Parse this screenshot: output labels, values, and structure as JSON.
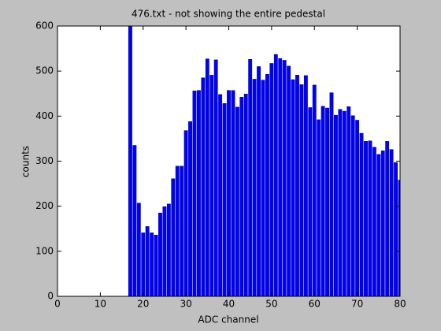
{
  "chart_data": {
    "type": "bar",
    "title": "476.txt - not showing the entire pedestal",
    "x_label": "ADC channel",
    "y_label": "counts",
    "x": [
      17,
      18,
      19,
      20,
      21,
      22,
      23,
      24,
      25,
      26,
      27,
      28,
      29,
      30,
      31,
      32,
      33,
      34,
      35,
      36,
      37,
      38,
      39,
      40,
      41,
      42,
      43,
      44,
      45,
      46,
      47,
      48,
      49,
      50,
      51,
      52,
      53,
      54,
      55,
      56,
      57,
      58,
      59,
      60,
      61,
      62,
      63,
      64,
      65,
      66,
      67,
      68,
      69,
      70,
      71,
      72,
      73,
      74,
      75,
      76,
      77,
      78,
      79,
      80
    ],
    "values": [
      600,
      335,
      207,
      141,
      155,
      141,
      136,
      185,
      199,
      205,
      261,
      289,
      289,
      368,
      388,
      456,
      457,
      485,
      527,
      491,
      525,
      448,
      428,
      457,
      457,
      420,
      442,
      449,
      526,
      482,
      510,
      480,
      493,
      517,
      537,
      528,
      524,
      511,
      481,
      491,
      470,
      490,
      419,
      469,
      392,
      422,
      418,
      452,
      402,
      415,
      411,
      421,
      401,
      391,
      362,
      344,
      345,
      331,
      315,
      323,
      344,
      326,
      297,
      258
    ],
    "color": "#0000ff",
    "xlim": [
      0,
      80
    ],
    "xticks": [
      0,
      10,
      20,
      30,
      40,
      50,
      60,
      70,
      80
    ],
    "ylim": [
      0,
      600
    ],
    "yticks": [
      0,
      100,
      200,
      300,
      400,
      500,
      600
    ]
  }
}
